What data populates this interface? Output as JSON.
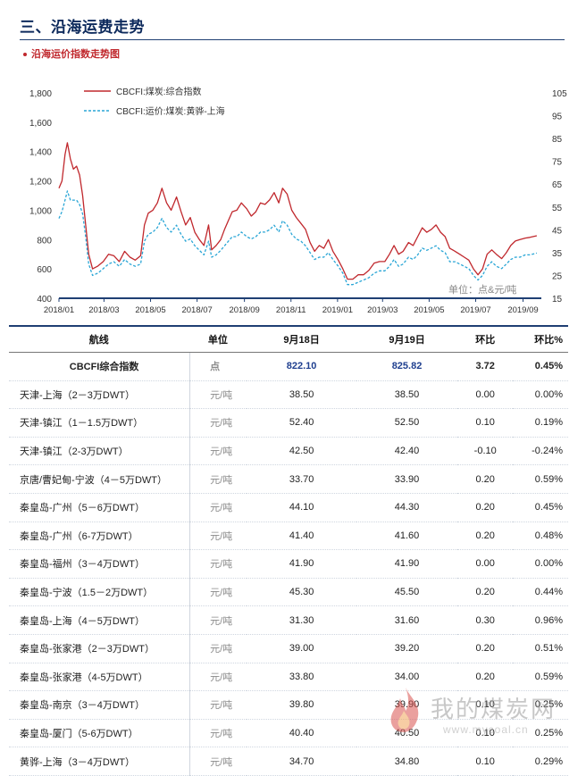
{
  "section": {
    "title": "三、沿海运费走势",
    "subtitle": "沿海运价指数走势图"
  },
  "colors": {
    "series_cbcfi": "#c0282d",
    "series_route": "#2aa6d6",
    "navy": "#1f3f73"
  },
  "chart_data": {
    "type": "line",
    "x_tick_labels": [
      "2018/01",
      "2018/03",
      "2018/05",
      "2018/07",
      "2018/09",
      "2018/11",
      "2019/01",
      "2019/03",
      "2019/05",
      "2019/07",
      "2019/09"
    ],
    "y_left_ticks": [
      "400",
      "600",
      "800",
      "1,000",
      "1,200",
      "1,400",
      "1,600",
      "1,800"
    ],
    "y_right_ticks": [
      "15",
      "25",
      "35",
      "45",
      "55",
      "65",
      "75",
      "85",
      "95",
      "105"
    ],
    "y_left_range": [
      400,
      1800
    ],
    "y_right_range": [
      15,
      105
    ],
    "legend_position": "top-left",
    "annotation": "单位：点&元/吨",
    "series": [
      {
        "name": "CBCFI:煤炭:综合指数",
        "axis": "left",
        "style": "solid",
        "points": [
          [
            "2018/01/01",
            1150
          ],
          [
            "2018/01/05",
            1200
          ],
          [
            "2018/01/09",
            1380
          ],
          [
            "2018/01/12",
            1460
          ],
          [
            "2018/01/16",
            1350
          ],
          [
            "2018/01/20",
            1280
          ],
          [
            "2018/01/24",
            1300
          ],
          [
            "2018/01/28",
            1240
          ],
          [
            "2018/02/01",
            1100
          ],
          [
            "2018/02/05",
            900
          ],
          [
            "2018/02/09",
            700
          ],
          [
            "2018/02/14",
            600
          ],
          [
            "2018/02/21",
            620
          ],
          [
            "2018/02/28",
            650
          ],
          [
            "2018/03/07",
            700
          ],
          [
            "2018/03/14",
            690
          ],
          [
            "2018/03/21",
            650
          ],
          [
            "2018/03/28",
            720
          ],
          [
            "2018/04/04",
            680
          ],
          [
            "2018/04/11",
            660
          ],
          [
            "2018/04/18",
            690
          ],
          [
            "2018/04/23",
            900
          ],
          [
            "2018/04/28",
            980
          ],
          [
            "2018/05/04",
            1000
          ],
          [
            "2018/05/10",
            1050
          ],
          [
            "2018/05/16",
            1150
          ],
          [
            "2018/05/22",
            1050
          ],
          [
            "2018/05/28",
            1000
          ],
          [
            "2018/06/04",
            1090
          ],
          [
            "2018/06/10",
            990
          ],
          [
            "2018/06/16",
            900
          ],
          [
            "2018/06/22",
            950
          ],
          [
            "2018/06/28",
            850
          ],
          [
            "2018/07/04",
            800
          ],
          [
            "2018/07/10",
            760
          ],
          [
            "2018/07/16",
            900
          ],
          [
            "2018/07/20",
            730
          ],
          [
            "2018/07/26",
            760
          ],
          [
            "2018/08/01",
            800
          ],
          [
            "2018/08/06",
            870
          ],
          [
            "2018/08/11",
            930
          ],
          [
            "2018/08/16",
            990
          ],
          [
            "2018/08/22",
            1000
          ],
          [
            "2018/08/28",
            1050
          ],
          [
            "2018/09/04",
            1010
          ],
          [
            "2018/09/10",
            960
          ],
          [
            "2018/09/16",
            990
          ],
          [
            "2018/09/22",
            1050
          ],
          [
            "2018/09/28",
            1040
          ],
          [
            "2018/10/04",
            1070
          ],
          [
            "2018/10/10",
            1120
          ],
          [
            "2018/10/16",
            1050
          ],
          [
            "2018/10/21",
            1150
          ],
          [
            "2018/10/27",
            1110
          ],
          [
            "2018/11/02",
            1000
          ],
          [
            "2018/11/08",
            950
          ],
          [
            "2018/11/14",
            910
          ],
          [
            "2018/11/20",
            870
          ],
          [
            "2018/11/26",
            780
          ],
          [
            "2018/12/02",
            720
          ],
          [
            "2018/12/08",
            760
          ],
          [
            "2018/12/14",
            740
          ],
          [
            "2018/12/20",
            800
          ],
          [
            "2018/12/26",
            720
          ],
          [
            "2019/01/02",
            660
          ],
          [
            "2019/01/08",
            600
          ],
          [
            "2019/01/14",
            530
          ],
          [
            "2019/01/21",
            530
          ],
          [
            "2019/01/28",
            560
          ],
          [
            "2019/02/04",
            560
          ],
          [
            "2019/02/11",
            590
          ],
          [
            "2019/02/18",
            640
          ],
          [
            "2019/02/25",
            650
          ],
          [
            "2019/03/04",
            650
          ],
          [
            "2019/03/10",
            700
          ],
          [
            "2019/03/16",
            760
          ],
          [
            "2019/03/22",
            700
          ],
          [
            "2019/03/28",
            720
          ],
          [
            "2019/04/04",
            780
          ],
          [
            "2019/04/10",
            760
          ],
          [
            "2019/04/16",
            820
          ],
          [
            "2019/04/22",
            880
          ],
          [
            "2019/04/28",
            850
          ],
          [
            "2019/05/04",
            870
          ],
          [
            "2019/05/10",
            900
          ],
          [
            "2019/05/16",
            850
          ],
          [
            "2019/05/22",
            820
          ],
          [
            "2019/05/28",
            740
          ],
          [
            "2019/06/04",
            720
          ],
          [
            "2019/06/10",
            700
          ],
          [
            "2019/06/16",
            680
          ],
          [
            "2019/06/22",
            660
          ],
          [
            "2019/06/28",
            600
          ],
          [
            "2019/07/04",
            560
          ],
          [
            "2019/07/10",
            600
          ],
          [
            "2019/07/16",
            700
          ],
          [
            "2019/07/22",
            730
          ],
          [
            "2019/07/28",
            700
          ],
          [
            "2019/08/04",
            670
          ],
          [
            "2019/08/10",
            710
          ],
          [
            "2019/08/16",
            760
          ],
          [
            "2019/08/22",
            790
          ],
          [
            "2019/08/28",
            800
          ],
          [
            "2019/09/04",
            810
          ],
          [
            "2019/09/10",
            815
          ],
          [
            "2019/09/19",
            826
          ]
        ]
      },
      {
        "name": "CBCFI:运价:煤炭:黄骅-上海",
        "axis": "right",
        "style": "dashed",
        "points": [
          [
            "2018/01/01",
            50
          ],
          [
            "2018/01/05",
            53
          ],
          [
            "2018/01/09",
            58
          ],
          [
            "2018/01/12",
            62
          ],
          [
            "2018/01/16",
            58
          ],
          [
            "2018/01/20",
            58
          ],
          [
            "2018/01/24",
            58
          ],
          [
            "2018/01/28",
            56
          ],
          [
            "2018/02/01",
            52
          ],
          [
            "2018/02/05",
            42
          ],
          [
            "2018/02/09",
            30
          ],
          [
            "2018/02/14",
            25
          ],
          [
            "2018/02/21",
            26
          ],
          [
            "2018/02/28",
            28
          ],
          [
            "2018/03/07",
            30
          ],
          [
            "2018/03/14",
            31
          ],
          [
            "2018/03/21",
            29
          ],
          [
            "2018/03/28",
            32
          ],
          [
            "2018/04/04",
            30
          ],
          [
            "2018/04/11",
            29
          ],
          [
            "2018/04/18",
            30
          ],
          [
            "2018/04/23",
            40
          ],
          [
            "2018/04/28",
            43
          ],
          [
            "2018/05/04",
            44
          ],
          [
            "2018/05/10",
            46
          ],
          [
            "2018/05/16",
            50
          ],
          [
            "2018/05/22",
            46
          ],
          [
            "2018/05/28",
            44
          ],
          [
            "2018/06/04",
            47
          ],
          [
            "2018/06/10",
            43
          ],
          [
            "2018/06/16",
            40
          ],
          [
            "2018/06/22",
            41
          ],
          [
            "2018/06/28",
            38
          ],
          [
            "2018/07/04",
            36
          ],
          [
            "2018/07/10",
            34
          ],
          [
            "2018/07/16",
            40
          ],
          [
            "2018/07/20",
            33
          ],
          [
            "2018/07/26",
            34
          ],
          [
            "2018/08/01",
            36
          ],
          [
            "2018/08/06",
            38
          ],
          [
            "2018/08/11",
            40
          ],
          [
            "2018/08/16",
            42
          ],
          [
            "2018/08/22",
            42
          ],
          [
            "2018/08/28",
            44
          ],
          [
            "2018/09/04",
            42
          ],
          [
            "2018/09/10",
            41
          ],
          [
            "2018/09/16",
            42
          ],
          [
            "2018/09/22",
            44
          ],
          [
            "2018/09/28",
            44
          ],
          [
            "2018/10/04",
            45
          ],
          [
            "2018/10/10",
            47
          ],
          [
            "2018/10/16",
            44
          ],
          [
            "2018/10/21",
            49
          ],
          [
            "2018/10/27",
            47
          ],
          [
            "2018/11/02",
            43
          ],
          [
            "2018/11/08",
            41
          ],
          [
            "2018/11/14",
            40
          ],
          [
            "2018/11/20",
            38
          ],
          [
            "2018/11/26",
            35
          ],
          [
            "2018/12/02",
            32
          ],
          [
            "2018/12/08",
            33
          ],
          [
            "2018/12/14",
            33
          ],
          [
            "2018/12/20",
            35
          ],
          [
            "2018/12/26",
            32
          ],
          [
            "2019/01/02",
            29
          ],
          [
            "2019/01/08",
            26
          ],
          [
            "2019/01/14",
            21
          ],
          [
            "2019/01/21",
            21
          ],
          [
            "2019/01/28",
            22
          ],
          [
            "2019/02/04",
            23
          ],
          [
            "2019/02/11",
            24
          ],
          [
            "2019/02/18",
            26
          ],
          [
            "2019/02/25",
            27
          ],
          [
            "2019/03/04",
            27
          ],
          [
            "2019/03/10",
            29
          ],
          [
            "2019/03/16",
            32
          ],
          [
            "2019/03/22",
            29
          ],
          [
            "2019/03/28",
            30
          ],
          [
            "2019/04/04",
            33
          ],
          [
            "2019/04/10",
            32
          ],
          [
            "2019/04/16",
            34
          ],
          [
            "2019/04/22",
            37
          ],
          [
            "2019/04/28",
            36
          ],
          [
            "2019/05/04",
            37
          ],
          [
            "2019/05/10",
            38
          ],
          [
            "2019/05/16",
            36
          ],
          [
            "2019/05/22",
            35
          ],
          [
            "2019/05/28",
            31
          ],
          [
            "2019/06/04",
            31
          ],
          [
            "2019/06/10",
            30
          ],
          [
            "2019/06/16",
            29
          ],
          [
            "2019/06/22",
            28
          ],
          [
            "2019/06/28",
            25
          ],
          [
            "2019/07/04",
            23
          ],
          [
            "2019/07/10",
            25
          ],
          [
            "2019/07/16",
            29
          ],
          [
            "2019/07/22",
            31
          ],
          [
            "2019/07/28",
            29
          ],
          [
            "2019/08/04",
            28
          ],
          [
            "2019/08/10",
            30
          ],
          [
            "2019/08/16",
            32
          ],
          [
            "2019/08/22",
            33
          ],
          [
            "2019/08/28",
            33
          ],
          [
            "2019/09/04",
            34
          ],
          [
            "2019/09/10",
            34
          ],
          [
            "2019/09/19",
            34.8
          ]
        ]
      }
    ]
  },
  "table": {
    "headers": [
      "航线",
      "单位",
      "9月18日",
      "9月19日",
      "环比",
      "环比%"
    ],
    "summary": {
      "route": "CBCFI综合指数",
      "unit": "点",
      "v1": "822.10",
      "v2": "825.82",
      "change": "3.72",
      "pct": "0.45%"
    },
    "rows": [
      {
        "route": "天津-上海（2－3万DWT）",
        "unit": "元/吨",
        "v1": "38.50",
        "v2": "38.50",
        "change": "0.00",
        "pct": "0.00%"
      },
      {
        "route": "天津-镇江（1－1.5万DWT）",
        "unit": "元/吨",
        "v1": "52.40",
        "v2": "52.50",
        "change": "0.10",
        "pct": "0.19%"
      },
      {
        "route": "天津-镇江（2-3万DWT）",
        "unit": "元/吨",
        "v1": "42.50",
        "v2": "42.40",
        "change": "-0.10",
        "pct": "-0.24%"
      },
      {
        "route": "京唐/曹妃甸-宁波（4－5万DWT）",
        "unit": "元/吨",
        "v1": "33.70",
        "v2": "33.90",
        "change": "0.20",
        "pct": "0.59%"
      },
      {
        "route": "秦皇岛-广州（5－6万DWT）",
        "unit": "元/吨",
        "v1": "44.10",
        "v2": "44.30",
        "change": "0.20",
        "pct": "0.45%"
      },
      {
        "route": "秦皇岛-广州（6-7万DWT）",
        "unit": "元/吨",
        "v1": "41.40",
        "v2": "41.60",
        "change": "0.20",
        "pct": "0.48%"
      },
      {
        "route": "秦皇岛-福州（3－4万DWT）",
        "unit": "元/吨",
        "v1": "41.90",
        "v2": "41.90",
        "change": "0.00",
        "pct": "0.00%"
      },
      {
        "route": "秦皇岛-宁波（1.5－2万DWT）",
        "unit": "元/吨",
        "v1": "45.30",
        "v2": "45.50",
        "change": "0.20",
        "pct": "0.44%"
      },
      {
        "route": "秦皇岛-上海（4－5万DWT）",
        "unit": "元/吨",
        "v1": "31.30",
        "v2": "31.60",
        "change": "0.30",
        "pct": "0.96%"
      },
      {
        "route": "秦皇岛-张家港（2－3万DWT）",
        "unit": "元/吨",
        "v1": "39.00",
        "v2": "39.20",
        "change": "0.20",
        "pct": "0.51%"
      },
      {
        "route": "秦皇岛-张家港（4-5万DWT）",
        "unit": "元/吨",
        "v1": "33.80",
        "v2": "34.00",
        "change": "0.20",
        "pct": "0.59%"
      },
      {
        "route": "秦皇岛-南京（3－4万DWT）",
        "unit": "元/吨",
        "v1": "39.80",
        "v2": "39.90",
        "change": "0.10",
        "pct": "0.25%"
      },
      {
        "route": "秦皇岛-厦门（5-6万DWT）",
        "unit": "元/吨",
        "v1": "40.40",
        "v2": "40.50",
        "change": "0.10",
        "pct": "0.25%"
      },
      {
        "route": "黄骅-上海（3－4万DWT）",
        "unit": "元/吨",
        "v1": "34.70",
        "v2": "34.80",
        "change": "0.10",
        "pct": "0.29%"
      }
    ]
  },
  "watermark": {
    "text": "我的煤炭网",
    "url": "www.mycoal.cn",
    "icon": "flame-logo-icon"
  }
}
